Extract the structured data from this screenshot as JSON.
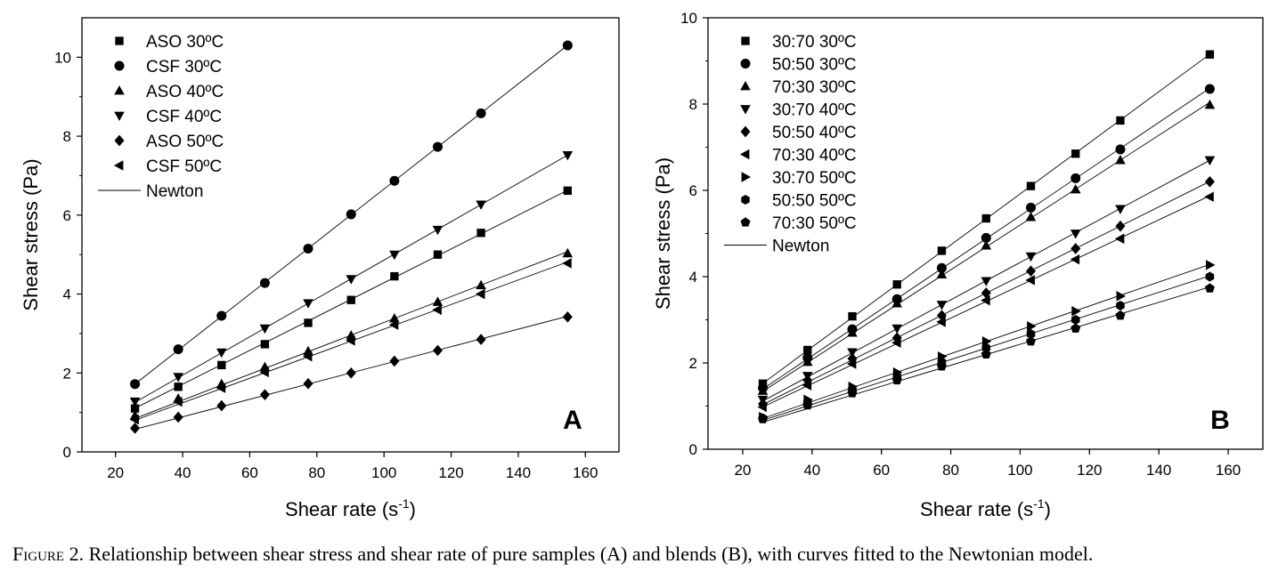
{
  "caption": {
    "label": "Figure 2.",
    "text": "Relationship between shear stress and shear rate of pure samples (A) and blends (B), with curves fitted to the Newtonian model."
  },
  "chart_data": [
    {
      "type": "scatter",
      "panel_label": "A",
      "xlabel": "Shear rate (s",
      "xlabel_sup": "-1",
      "xlabel_end": ")",
      "ylabel": "Shear stress (Pa)",
      "xlim": [
        10,
        170
      ],
      "ylim": [
        0,
        11
      ],
      "xticks": [
        20,
        40,
        60,
        80,
        100,
        120,
        140,
        160
      ],
      "yticks": [
        0,
        2,
        4,
        6,
        8,
        10
      ],
      "x": [
        25.8,
        38.7,
        51.6,
        64.5,
        77.4,
        90.2,
        103.1,
        116.0,
        128.9,
        154.7
      ],
      "legend_position": "top-left",
      "fit_label": "Newton",
      "series": [
        {
          "name": "ASO 30ºC",
          "marker": "square",
          "values": [
            1.1,
            1.65,
            2.2,
            2.73,
            3.27,
            3.85,
            4.45,
            5.0,
            5.55,
            6.62
          ]
        },
        {
          "name": "CSF 30ºC",
          "marker": "circle",
          "values": [
            1.72,
            2.6,
            3.45,
            4.28,
            5.15,
            6.02,
            6.87,
            7.73,
            8.58,
            10.3
          ]
        },
        {
          "name": "ASO 40ºC",
          "marker": "triangle-up",
          "values": [
            0.92,
            1.35,
            1.72,
            2.15,
            2.55,
            2.95,
            3.38,
            3.8,
            4.22,
            5.03
          ]
        },
        {
          "name": "CSF 40ºC",
          "marker": "triangle-down",
          "values": [
            1.28,
            1.9,
            2.52,
            3.13,
            3.77,
            4.38,
            5.0,
            5.63,
            6.27,
            7.52
          ]
        },
        {
          "name": "ASO 50ºC",
          "marker": "diamond",
          "values": [
            0.6,
            0.88,
            1.17,
            1.45,
            1.73,
            2.0,
            2.3,
            2.57,
            2.85,
            3.42
          ]
        },
        {
          "name": "CSF 50ºC",
          "marker": "triangle-left",
          "values": [
            0.82,
            1.27,
            1.62,
            2.02,
            2.42,
            2.82,
            3.22,
            3.6,
            4.0,
            4.78
          ]
        }
      ]
    },
    {
      "type": "scatter",
      "panel_label": "B",
      "xlabel": "Shear rate (s",
      "xlabel_sup": "-1",
      "xlabel_end": ")",
      "ylabel": "Shear stress (Pa)",
      "xlim": [
        10,
        170
      ],
      "ylim": [
        0,
        10
      ],
      "xticks": [
        20,
        40,
        60,
        80,
        100,
        120,
        140,
        160
      ],
      "yticks": [
        0,
        2,
        4,
        6,
        8,
        10
      ],
      "x": [
        25.8,
        38.7,
        51.6,
        64.5,
        77.4,
        90.2,
        103.1,
        116.0,
        128.9,
        154.7
      ],
      "legend_position": "top-left",
      "fit_label": "Newton",
      "series": [
        {
          "name": "30:70 30ºC",
          "marker": "square",
          "values": [
            1.52,
            2.3,
            3.08,
            3.82,
            4.6,
            5.35,
            6.1,
            6.85,
            7.62,
            9.15
          ]
        },
        {
          "name": "50:50 30ºC",
          "marker": "circle",
          "values": [
            1.42,
            2.12,
            2.78,
            3.48,
            4.2,
            4.9,
            5.6,
            6.28,
            6.95,
            8.35
          ]
        },
        {
          "name": "70:30 30ºC",
          "marker": "triangle-up",
          "values": [
            1.35,
            2.02,
            2.7,
            3.38,
            4.05,
            4.72,
            5.38,
            6.02,
            6.7,
            7.98
          ]
        },
        {
          "name": "30:70 40ºC",
          "marker": "triangle-down",
          "values": [
            1.15,
            1.7,
            2.25,
            2.8,
            3.35,
            3.9,
            4.47,
            5.0,
            5.57,
            6.7
          ]
        },
        {
          "name": "50:50 40ºC",
          "marker": "diamond",
          "values": [
            1.05,
            1.6,
            2.1,
            2.58,
            3.1,
            3.62,
            4.13,
            4.65,
            5.17,
            6.2
          ]
        },
        {
          "name": "70:30 40ºC",
          "marker": "triangle-left",
          "values": [
            0.98,
            1.48,
            1.98,
            2.47,
            2.95,
            3.45,
            3.92,
            4.4,
            4.88,
            5.85
          ]
        },
        {
          "name": "30:70 50ºC",
          "marker": "triangle-right",
          "values": [
            0.75,
            1.15,
            1.45,
            1.78,
            2.15,
            2.5,
            2.85,
            3.2,
            3.55,
            4.27
          ]
        },
        {
          "name": "50:50 50ºC",
          "marker": "hexagon",
          "values": [
            0.72,
            1.08,
            1.38,
            1.68,
            2.02,
            2.35,
            2.67,
            3.0,
            3.33,
            4.0
          ]
        },
        {
          "name": "70:30 50ºC",
          "marker": "pentagon",
          "values": [
            0.7,
            1.02,
            1.3,
            1.6,
            1.92,
            2.2,
            2.5,
            2.8,
            3.1,
            3.73
          ]
        }
      ]
    }
  ]
}
